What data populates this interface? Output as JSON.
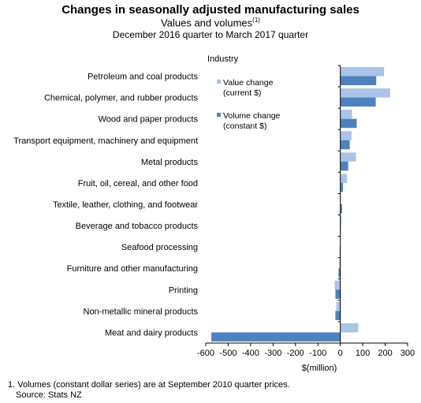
{
  "chart_data": {
    "type": "bar",
    "orientation": "horizontal",
    "title": "Changes in seasonally adjusted manufacturing sales",
    "subtitle": "Values and volumes",
    "subtitle_footnote_marker": "(1)",
    "period": "December 2016 quarter to March 2017 quarter",
    "category_axis_label": "Industry",
    "xlabel": "$(million)",
    "xlim": [
      -600,
      300
    ],
    "xticks": [
      -600,
      -500,
      -400,
      -300,
      -200,
      -100,
      0,
      100,
      200,
      300
    ],
    "grid": false,
    "legend_placement": "upper-right inside plot",
    "categories": [
      "Petroleum and coal products",
      "Chemical, polymer, and rubber products",
      "Wood and paper products",
      "Transport equipment, machinery and equipment",
      "Metal products",
      "Fruit, oil, cereal, and other food",
      "Textile, leather, clothing, and footwear",
      "Beverage and tobacco products",
      "Seafood processing",
      "Furniture and other manufacturing",
      "Printing",
      "Non-metallic mineral products",
      "Meat and dairy products"
    ],
    "series": [
      {
        "name": "Value change (current $)",
        "legend_lines": [
          "Value change",
          "(current $)"
        ],
        "color": "#a9c4e6",
        "values": [
          195,
          222,
          52,
          50,
          70,
          30,
          0,
          5,
          -1,
          -5,
          -25,
          -18,
          80
        ]
      },
      {
        "name": "Volume change (constant $)",
        "legend_lines": [
          "Volume change",
          "(constant $)"
        ],
        "color": "#4f81bd",
        "values": [
          160,
          158,
          73,
          42,
          35,
          12,
          8,
          2,
          -3,
          -8,
          -22,
          -22,
          -575
        ]
      }
    ]
  },
  "footnote": "1. Volumes (constant dollar series) are at September 2010 quarter prices.",
  "source": "Source: Stats NZ",
  "colors": {
    "axis": "#000000",
    "text": "#000000"
  }
}
